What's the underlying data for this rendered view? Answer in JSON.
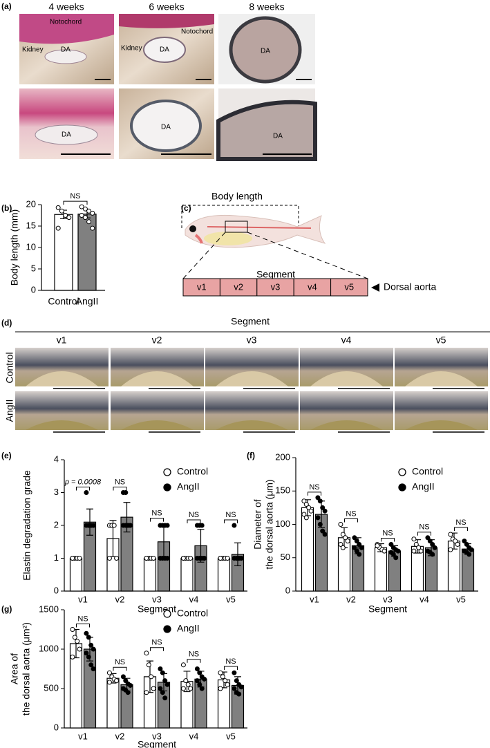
{
  "panel_a": {
    "label": "(a)",
    "columns": [
      "4 weeks",
      "6 weeks",
      "8 weeks"
    ],
    "annotations": [
      "Notochord",
      "Kidney",
      "DA",
      "Notochord",
      "Kidney",
      "DA",
      "DA",
      "DA",
      "DA",
      "DA"
    ]
  },
  "panel_c": {
    "label": "(c)",
    "body_length": "Body length",
    "segment": "Segment",
    "segments": [
      "v1",
      "v2",
      "v3",
      "v4",
      "v5"
    ],
    "vessel": "Dorsal aorta"
  },
  "panel_d": {
    "label": "(d)",
    "title": "Segment",
    "columns": [
      "v1",
      "v2",
      "v3",
      "v4",
      "v5"
    ],
    "rows": [
      "Control",
      "AngII"
    ]
  },
  "chart_data": [
    {
      "type": "bar",
      "label": "(b)",
      "y_label": [
        "Body length (mm)"
      ],
      "categories": [
        "Control",
        "AngII"
      ],
      "values": [
        17.7,
        17.8
      ],
      "errors": [
        1.0,
        0.9
      ],
      "points": [
        [
          19.3,
          18.5,
          17.5,
          17,
          14.5
        ],
        [
          19.5,
          19,
          18.5,
          18,
          17.5,
          17,
          16,
          14.5
        ]
      ],
      "colors": [
        "#ffffff",
        "#808080"
      ],
      "marker_color": "#ffffff",
      "comparison": "NS",
      "ylim": [
        0,
        20
      ],
      "yticks": [
        0,
        5,
        10,
        15,
        20
      ]
    },
    {
      "type": "bar",
      "label": "(e)",
      "y_label": [
        "Elastin degradation grade"
      ],
      "x_label": "Segment",
      "categories": [
        "v1",
        "v2",
        "v3",
        "v4",
        "v5"
      ],
      "series": [
        {
          "name": "Control",
          "color": "#ffffff",
          "marker_color": "#ffffff",
          "values": [
            1,
            1.6,
            1,
            1,
            1
          ],
          "errors": [
            0,
            0.55,
            0,
            0,
            0
          ],
          "points": [
            [
              1,
              1,
              1,
              1,
              1
            ],
            [
              2,
              2,
              2,
              1,
              1
            ],
            [
              1,
              1,
              1,
              1,
              1
            ],
            [
              1,
              1,
              1,
              1,
              1
            ],
            [
              1,
              1,
              1,
              1,
              1
            ]
          ]
        },
        {
          "name": "AngII",
          "color": "#808080",
          "marker_color": "#000000",
          "values": [
            2.1,
            2.25,
            1.5,
            1.38,
            1.12
          ],
          "errors": [
            0.4,
            0.45,
            0.55,
            0.5,
            0.35
          ],
          "points": [
            [
              3,
              2,
              2,
              2,
              2,
              2,
              2,
              2
            ],
            [
              3,
              3,
              2,
              2,
              2,
              2,
              2,
              2
            ],
            [
              2,
              2,
              2,
              2,
              1,
              1,
              1,
              1
            ],
            [
              2,
              2,
              2,
              1,
              1,
              1,
              1,
              1
            ],
            [
              2,
              1,
              1,
              1,
              1,
              1,
              1,
              1
            ]
          ]
        }
      ],
      "comparisons": [
        "p = 0.0008",
        "NS",
        "NS",
        "NS",
        "NS"
      ],
      "ylim": [
        0,
        4
      ],
      "yticks": [
        0,
        1,
        2,
        3,
        4
      ]
    },
    {
      "type": "bar",
      "label": "(f)",
      "y_label": [
        "Diameter of",
        "the dorsal aorta (μm)"
      ],
      "x_label": "Segment",
      "categories": [
        "v1",
        "v2",
        "v3",
        "v4",
        "v5"
      ],
      "series": [
        {
          "name": "Control",
          "color": "#ffffff",
          "marker_color": "#ffffff",
          "values": [
            125,
            80,
            65,
            67,
            75
          ],
          "errors": [
            12,
            15,
            6,
            10,
            12
          ],
          "points": [
            [
              135,
              130,
              125,
              120,
              115,
              110
            ],
            [
              100,
              85,
              80,
              75,
              70,
              65
            ],
            [
              70,
              65,
              62,
              60,
              68
            ],
            [
              78,
              70,
              65,
              60,
              60
            ],
            [
              85,
              78,
              75,
              70,
              62
            ]
          ]
        },
        {
          "name": "AngII",
          "color": "#808080",
          "marker_color": "#000000",
          "values": [
            115,
            68,
            60,
            65,
            63
          ],
          "errors": [
            20,
            12,
            8,
            12,
            8
          ],
          "points": [
            [
              140,
              135,
              125,
              120,
              110,
              100,
              90,
              85
            ],
            [
              80,
              75,
              70,
              65,
              65,
              60,
              55
            ],
            [
              70,
              65,
              62,
              60,
              58,
              55,
              50
            ],
            [
              80,
              75,
              70,
              65,
              60,
              58,
              55
            ],
            [
              75,
              70,
              65,
              62,
              60,
              58,
              55
            ]
          ]
        }
      ],
      "comparisons": [
        "NS",
        "NS",
        "NS",
        "NS",
        "NS"
      ],
      "ylim": [
        0,
        200
      ],
      "yticks": [
        0,
        50,
        100,
        150,
        200
      ]
    },
    {
      "type": "bar",
      "label": "(g)",
      "y_label": [
        "Area of",
        "the dorsal aorta (μm²)"
      ],
      "x_label": "Segment",
      "categories": [
        "v1",
        "v2",
        "v3",
        "v4",
        "v5"
      ],
      "series": [
        {
          "name": "Control",
          "color": "#ffffff",
          "marker_color": "#ffffff",
          "values": [
            1070,
            630,
            650,
            590,
            610
          ],
          "errors": [
            180,
            60,
            200,
            130,
            100
          ],
          "points": [
            [
              1250,
              1150,
              1100,
              1000,
              900
            ],
            [
              700,
              650,
              620,
              600,
              580
            ],
            [
              950,
              800,
              650,
              500,
              450
            ],
            [
              800,
              600,
              550,
              500,
              500
            ],
            [
              700,
              650,
              600,
              550,
              500
            ]
          ]
        },
        {
          "name": "AngII",
          "color": "#808080",
          "marker_color": "#000000",
          "values": [
            1000,
            550,
            580,
            620,
            540
          ],
          "errors": [
            150,
            80,
            110,
            100,
            110
          ],
          "points": [
            [
              1200,
              1150,
              1050,
              1000,
              950,
              900,
              800,
              750
            ],
            [
              650,
              600,
              560,
              540,
              500,
              480,
              450
            ],
            [
              750,
              700,
              600,
              550,
              500,
              450,
              380
            ],
            [
              750,
              700,
              650,
              620,
              600,
              550,
              500
            ],
            [
              700,
              600,
              550,
              520,
              500,
              450,
              430
            ]
          ]
        }
      ],
      "comparisons": [
        "NS",
        "NS",
        "NS",
        "NS",
        "NS"
      ],
      "ylim": [
        0,
        1500
      ],
      "yticks": [
        0,
        500,
        1000,
        1500
      ]
    }
  ]
}
